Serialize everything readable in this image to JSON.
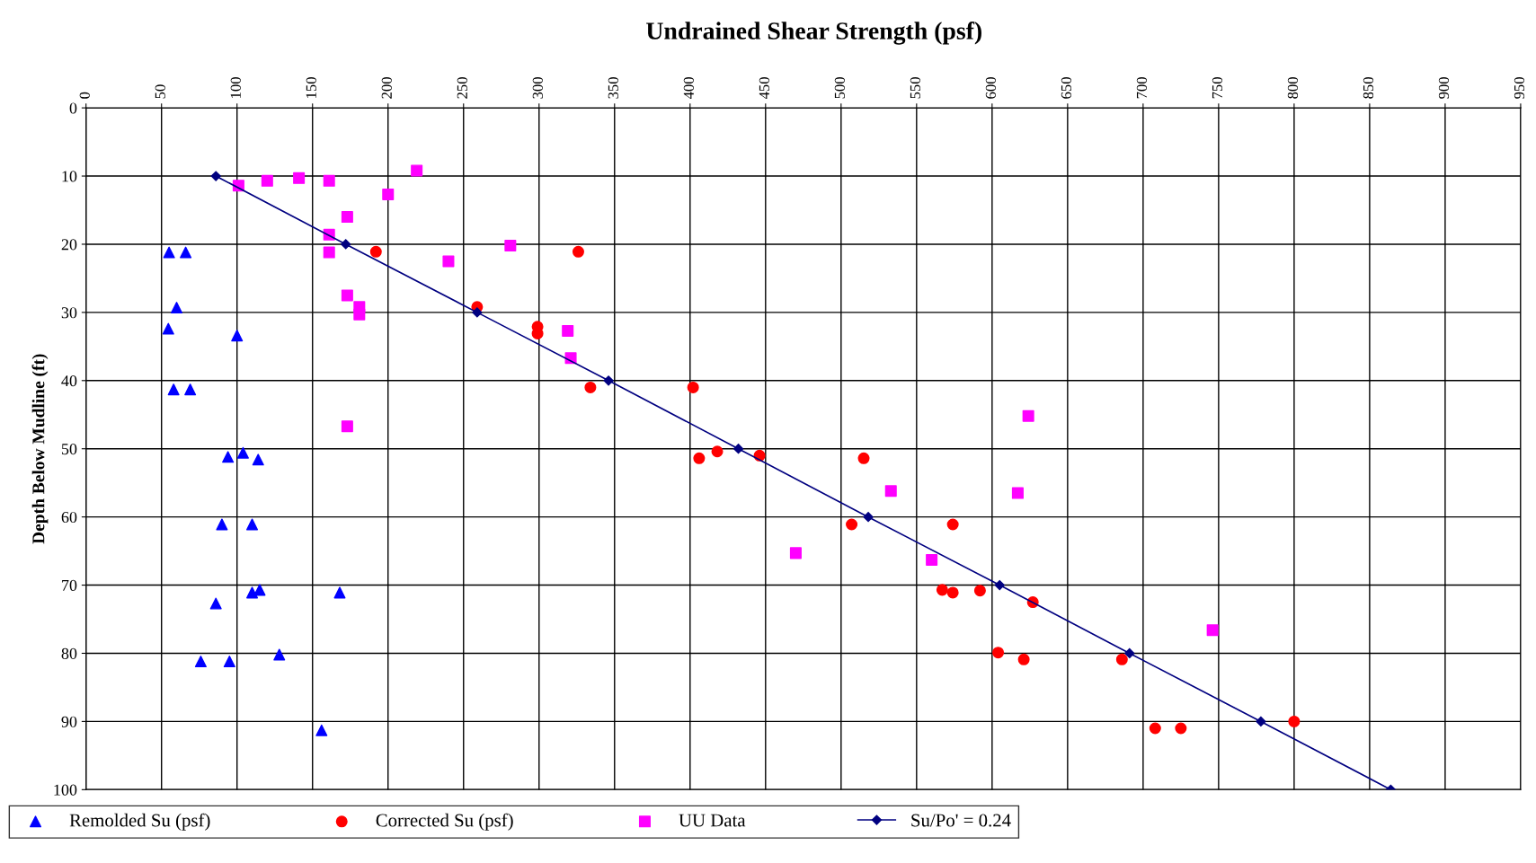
{
  "chart_data": {
    "type": "scatter",
    "title": "Undrained Shear Strength (psf)",
    "ylabel": "Depth Below Mudline (ft)",
    "xlim": [
      0,
      950
    ],
    "xticks": [
      0,
      50,
      100,
      150,
      200,
      250,
      300,
      350,
      400,
      450,
      500,
      550,
      600,
      650,
      700,
      750,
      800,
      850,
      900,
      950
    ],
    "ylim": [
      100,
      0
    ],
    "yticks": [
      0,
      10,
      20,
      30,
      40,
      50,
      60,
      70,
      80,
      90,
      100
    ],
    "grid": true,
    "legend": "bottom",
    "series": [
      {
        "name": "Remolded Su (psf)",
        "marker": "triangle",
        "color": "#0000ff",
        "x": [
          55,
          66,
          60,
          54.5,
          100,
          58,
          69,
          94,
          104,
          114,
          90,
          110,
          110,
          115,
          168,
          86,
          76,
          95,
          128,
          156
        ],
        "values": [
          21.2,
          21.2,
          29.3,
          32.4,
          33.4,
          41.3,
          41.3,
          51.2,
          50.6,
          51.6,
          61.1,
          61.1,
          71.1,
          70.7,
          71.1,
          72.7,
          81.2,
          81.2,
          80.2,
          91.3
        ]
      },
      {
        "name": "Corrected Su (psf)",
        "marker": "circle",
        "color": "#ff0000",
        "x": [
          192,
          326,
          259,
          299,
          299,
          334,
          402,
          406,
          418,
          446,
          515,
          507,
          574,
          567,
          574,
          592,
          627,
          604,
          621,
          686,
          708,
          725,
          800
        ],
        "values": [
          21.1,
          21.1,
          29.2,
          32.1,
          33.1,
          41,
          41,
          51.4,
          50.4,
          51,
          51.4,
          61.1,
          61.1,
          70.7,
          71.1,
          70.8,
          72.5,
          79.9,
          80.9,
          80.9,
          91,
          91,
          90
        ]
      },
      {
        "name": "UU Data",
        "marker": "square",
        "color": "#ff00ff",
        "x": [
          101,
          120,
          141,
          161,
          219,
          200,
          173,
          161,
          161,
          240,
          281,
          173,
          181,
          181,
          319,
          321,
          173,
          624,
          533,
          617,
          470,
          560,
          746
        ],
        "values": [
          11.4,
          10.7,
          10.3,
          10.7,
          9.2,
          12.7,
          16,
          18.6,
          21.2,
          22.5,
          20.2,
          27.5,
          29.2,
          30.3,
          32.7,
          36.7,
          46.7,
          45.2,
          56.2,
          56.5,
          65.3,
          66.3,
          76.6
        ]
      },
      {
        "name": "Su/Po' = 0.24",
        "type": "line",
        "marker": "diamond",
        "color": "#000080",
        "x": [
          86,
          172,
          259,
          346,
          432,
          518,
          605,
          691,
          778,
          864
        ],
        "values": [
          10,
          20,
          30,
          40,
          50,
          60,
          70,
          80,
          90,
          100
        ]
      }
    ]
  }
}
